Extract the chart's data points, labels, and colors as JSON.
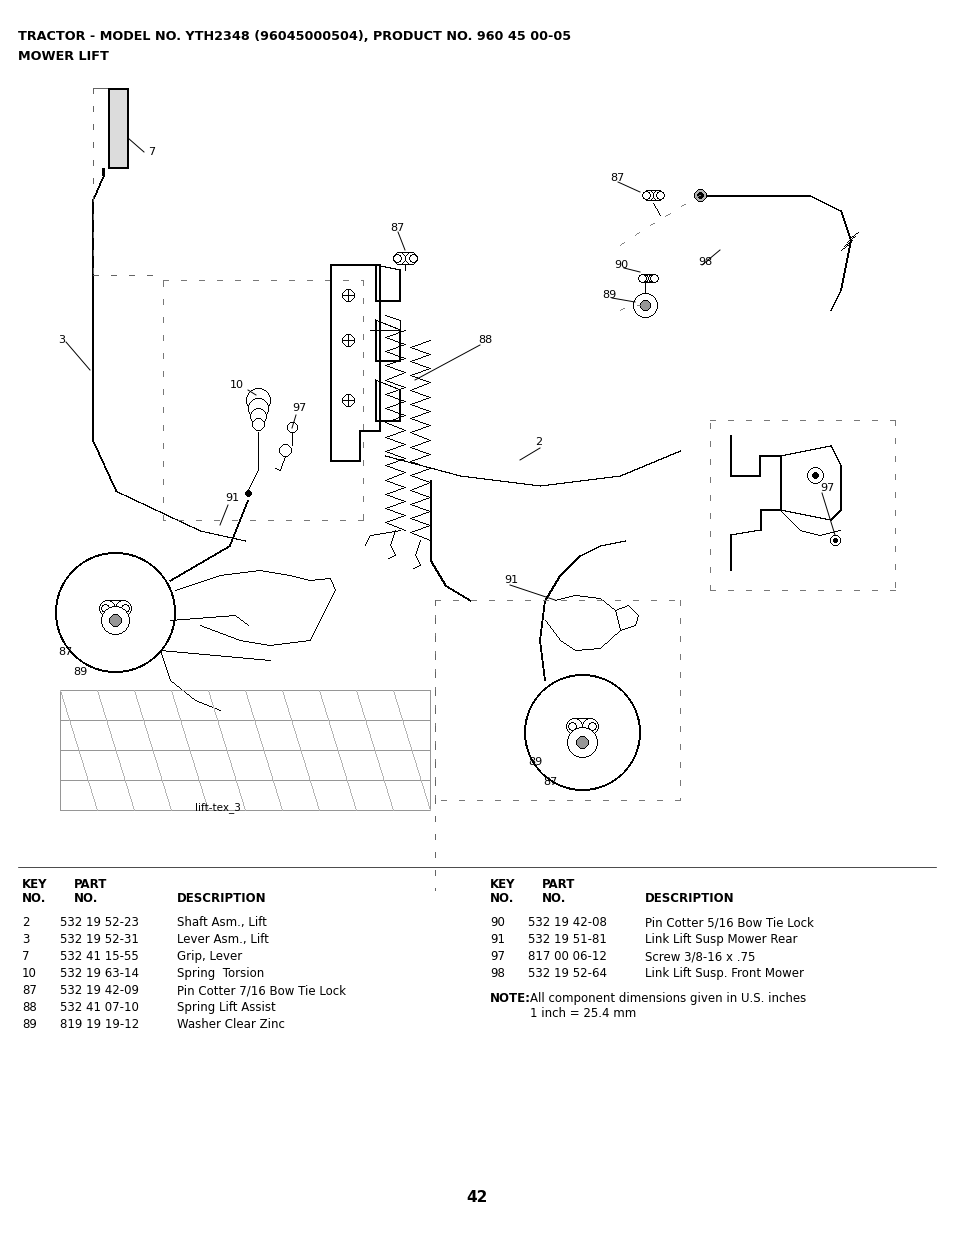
{
  "title_line1": "TRACTOR - MODEL NO. YTH2348 (96045000504), PRODUCT NO. 960 45 00-05",
  "title_line2": "MOWER LIFT",
  "page_number": "42",
  "image_label": "lift-tex_3",
  "bg_color": "#ffffff",
  "left_table": {
    "rows": [
      [
        "2",
        "532 19 52-23",
        "Shaft Asm., Lift"
      ],
      [
        "3",
        "532 19 52-31",
        "Lever Asm., Lift"
      ],
      [
        "7",
        "532 41 15-55",
        "Grip, Lever"
      ],
      [
        "10",
        "532 19 63-14",
        "Spring  Torsion"
      ],
      [
        "87",
        "532 19 42-09",
        "Pin Cotter 7/16 Bow Tie Lock"
      ],
      [
        "88",
        "532 41 07-10",
        "Spring Lift Assist"
      ],
      [
        "89",
        "819 19 19-12",
        "Washer Clear Zinc"
      ]
    ]
  },
  "right_table": {
    "rows": [
      [
        "90",
        "532 19 42-08",
        "Pin Cotter 5/16 Bow Tie Lock"
      ],
      [
        "91",
        "532 19 51-81",
        "Link Lift Susp Mower Rear"
      ],
      [
        "97",
        "817 00 06-12",
        "Screw 3/8-16 x .75"
      ],
      [
        "98",
        "532 19 52-64",
        "Link Lift Susp. Front Mower"
      ]
    ]
  }
}
